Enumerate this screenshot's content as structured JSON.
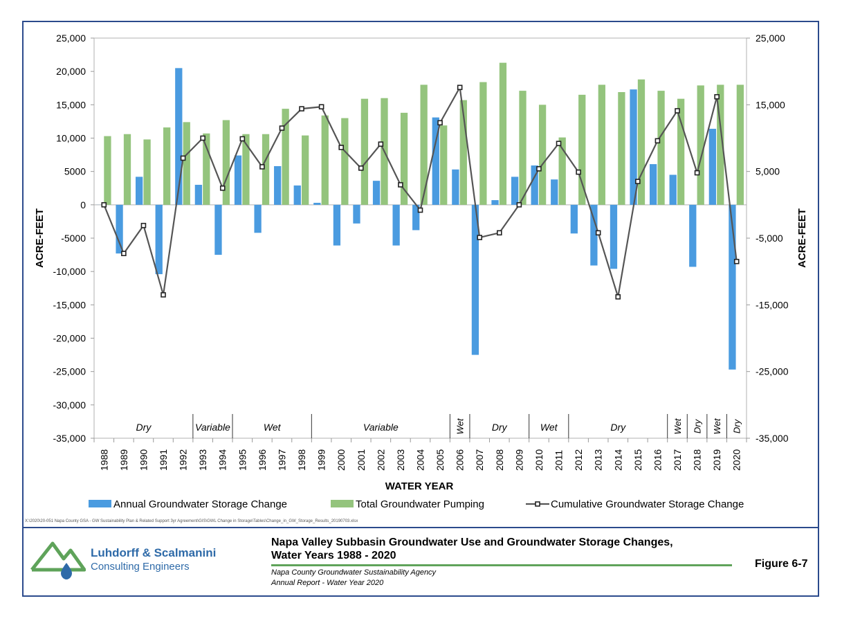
{
  "chart_data": {
    "type": "bar",
    "xlabel": "WATER YEAR",
    "ylabel": "ACRE-FEET",
    "y2label": "ACRE-FEET",
    "ylim": [
      -35000,
      25000
    ],
    "yticks": [
      25000,
      20000,
      15000,
      10000,
      5000,
      0,
      -5000,
      -10000,
      -15000,
      -20000,
      -25000,
      -30000,
      -35000
    ],
    "ytick_labels": [
      "25,000",
      "20,000",
      "15,000",
      "10,000",
      "5000",
      "0",
      "-5000",
      "-10,000",
      "-15,000",
      "-20,000",
      "-25,000",
      "-30,000",
      "-35,000"
    ],
    "y2ticks": [
      25000,
      15000,
      5000,
      -5000,
      -15000,
      -25000,
      -35000
    ],
    "y2tick_labels": [
      "25,000",
      "15,000",
      "5,000",
      "-5,000",
      "-15,000",
      "-25,000",
      "-35,000"
    ],
    "categories": [
      "1988",
      "1989",
      "1990",
      "1991",
      "1992",
      "1993",
      "1994",
      "1995",
      "1996",
      "1997",
      "1998",
      "1999",
      "2000",
      "2001",
      "2002",
      "2003",
      "2004",
      "2005",
      "2006",
      "2007",
      "2008",
      "2009",
      "2010",
      "2011",
      "2012",
      "2013",
      "2014",
      "2015",
      "2016",
      "2017",
      "2018",
      "2019",
      "2020"
    ],
    "series": [
      {
        "name": "Annual Groundwater Storage Change",
        "type": "bar",
        "color": "#4a9be0",
        "values": [
          0,
          -7300,
          4200,
          -10400,
          20500,
          3000,
          -7500,
          7400,
          -4200,
          5800,
          2900,
          300,
          -6100,
          -2800,
          3600,
          -6100,
          -3800,
          13100,
          5300,
          -22500,
          700,
          4200,
          5900,
          3800,
          -4300,
          -9100,
          -9600,
          17300,
          6100,
          4500,
          -9300,
          11400,
          -24700
        ]
      },
      {
        "name": "Total Groundwater Pumping",
        "type": "bar",
        "color": "#94c47d",
        "values": [
          10300,
          10600,
          9800,
          11600,
          12400,
          10700,
          12700,
          10600,
          10600,
          14400,
          10400,
          13400,
          13000,
          15900,
          16000,
          13800,
          18000,
          11900,
          15700,
          18400,
          21300,
          17100,
          15000,
          10100,
          16500,
          18000,
          16900,
          18800,
          17100,
          15900,
          17900,
          18000,
          18000
        ]
      },
      {
        "name": "Cumulative Groundwater Storage Change",
        "type": "line",
        "color": "#555555",
        "values": [
          0,
          -7300,
          -3100,
          -13500,
          7000,
          10000,
          2500,
          9900,
          5700,
          11500,
          14400,
          14700,
          8600,
          5500,
          9100,
          3000,
          -800,
          12300,
          17600,
          -4900,
          -4200,
          0,
          5400,
          9200,
          4900,
          -4200,
          -13800,
          3500,
          9600,
          14100,
          4800,
          16200,
          -8500
        ]
      }
    ],
    "legend": [
      "Annual Groundwater Storage Change",
      "Total Groundwater Pumping",
      "Cumulative Groundwater Storage Change"
    ],
    "legend_position": "bottom",
    "grid": false,
    "annotations": [
      {
        "text": "Dry",
        "years": [
          "1988",
          "1992"
        ]
      },
      {
        "text": "Variable",
        "years": [
          "1993",
          "1994"
        ]
      },
      {
        "text": "Wet",
        "years": [
          "1995",
          "1998"
        ]
      },
      {
        "text": "Variable",
        "years": [
          "1999",
          "2005"
        ]
      },
      {
        "text": "Wet",
        "years": [
          "2006",
          "2006"
        ],
        "vertical": true
      },
      {
        "text": "Dry",
        "years": [
          "2007",
          "2009"
        ]
      },
      {
        "text": "Wet",
        "years": [
          "2010",
          "2011"
        ]
      },
      {
        "text": "Dry",
        "years": [
          "2012",
          "2016"
        ]
      },
      {
        "text": "Wet",
        "years": [
          "2017",
          "2017"
        ],
        "vertical": true
      },
      {
        "text": "Dry",
        "years": [
          "2018",
          "2018"
        ],
        "vertical": true
      },
      {
        "text": "Wet",
        "years": [
          "2019",
          "2019"
        ],
        "vertical": true
      },
      {
        "text": "Dry",
        "years": [
          "2020",
          "2020"
        ],
        "vertical": true
      }
    ]
  },
  "footer": {
    "path": "X:\\2020\\20-051  Napa County GSA - GW Sustainability Plan & Related Support 3yr Agreement\\GIS\\GWL Change in Storage\\Tables\\Change_in_GW_Storage_Results_20190703.xlsx",
    "company_line1": "Luhdorff & Scalmanini",
    "company_line2": "Consulting Engineers",
    "title_line1": "Napa Valley Subbasin Groundwater Use and Groundwater Storage Changes,",
    "title_line2": "Water Years 1988 - 2020",
    "agency": "Napa County Groundwater Sustainability Agency",
    "report": "Annual Report - Water Year 2020",
    "figure": "Figure 6-7"
  },
  "colors": {
    "frame": "#2b4a8c",
    "logo_green": "#5fa35a",
    "logo_blue": "#2e6aa8"
  }
}
